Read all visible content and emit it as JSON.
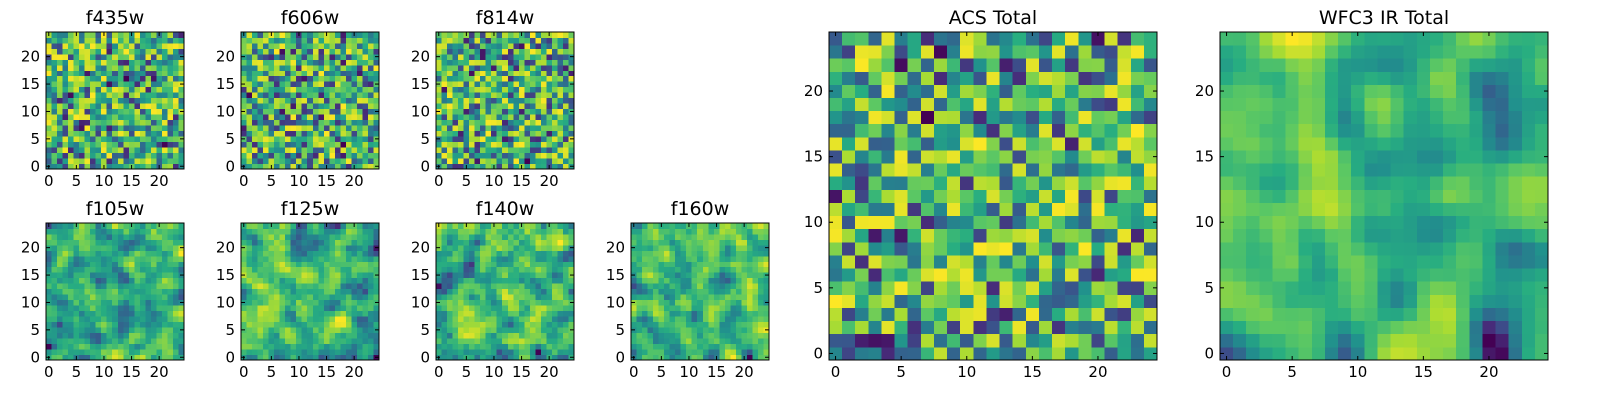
{
  "chart_data": [
    {
      "type": "heatmap",
      "id": "f435w",
      "title": "f435w",
      "grid_size": 25,
      "xticks": [
        "0",
        "5",
        "10",
        "15",
        "20"
      ],
      "yticks": [
        "0",
        "5",
        "10",
        "15",
        "20"
      ],
      "colormap": "viridis",
      "seed": 11,
      "smoothing": 0
    },
    {
      "type": "heatmap",
      "id": "f606w",
      "title": "f606w",
      "grid_size": 25,
      "xticks": [
        "0",
        "5",
        "10",
        "15",
        "20"
      ],
      "yticks": [
        "0",
        "5",
        "10",
        "15",
        "20"
      ],
      "colormap": "viridis",
      "seed": 23,
      "smoothing": 0
    },
    {
      "type": "heatmap",
      "id": "f814w",
      "title": "f814w",
      "grid_size": 25,
      "xticks": [
        "0",
        "5",
        "10",
        "15",
        "20"
      ],
      "yticks": [
        "0",
        "5",
        "10",
        "15",
        "20"
      ],
      "colormap": "viridis",
      "seed": 37,
      "smoothing": 0
    },
    {
      "type": "heatmap",
      "id": "f105w",
      "title": "f105w",
      "grid_size": 25,
      "xticks": [
        "0",
        "5",
        "10",
        "15",
        "20"
      ],
      "yticks": [
        "0",
        "5",
        "10",
        "15",
        "20"
      ],
      "colormap": "viridis",
      "seed": 41,
      "smoothing": 1
    },
    {
      "type": "heatmap",
      "id": "f125w",
      "title": "f125w",
      "grid_size": 25,
      "xticks": [
        "0",
        "5",
        "10",
        "15",
        "20"
      ],
      "yticks": [
        "0",
        "5",
        "10",
        "15",
        "20"
      ],
      "colormap": "viridis",
      "seed": 53,
      "smoothing": 1
    },
    {
      "type": "heatmap",
      "id": "f140w",
      "title": "f140w",
      "grid_size": 25,
      "xticks": [
        "0",
        "5",
        "10",
        "15",
        "20"
      ],
      "yticks": [
        "0",
        "5",
        "10",
        "15",
        "20"
      ],
      "colormap": "viridis",
      "seed": 67,
      "smoothing": 1
    },
    {
      "type": "heatmap",
      "id": "f160w",
      "title": "f160w",
      "grid_size": 25,
      "xticks": [
        "0",
        "5",
        "10",
        "15",
        "20"
      ],
      "yticks": [
        "0",
        "5",
        "10",
        "15",
        "20"
      ],
      "colormap": "viridis",
      "seed": 79,
      "smoothing": 1
    },
    {
      "type": "heatmap",
      "id": "acs-total",
      "title": "ACS Total",
      "grid_size": 25,
      "xticks": [
        "0",
        "5",
        "10",
        "15",
        "20"
      ],
      "yticks": [
        "0",
        "5",
        "10",
        "15",
        "20"
      ],
      "colormap": "viridis",
      "seed": 97,
      "smoothing": 0
    },
    {
      "type": "heatmap",
      "id": "wfc3-ir-total",
      "title": "WFC3 IR Total",
      "grid_size": 25,
      "xticks": [
        "0",
        "5",
        "10",
        "15",
        "20"
      ],
      "yticks": [
        "0",
        "5",
        "10",
        "15",
        "20"
      ],
      "colormap": "viridis",
      "seed": 131,
      "smoothing": 2
    }
  ]
}
